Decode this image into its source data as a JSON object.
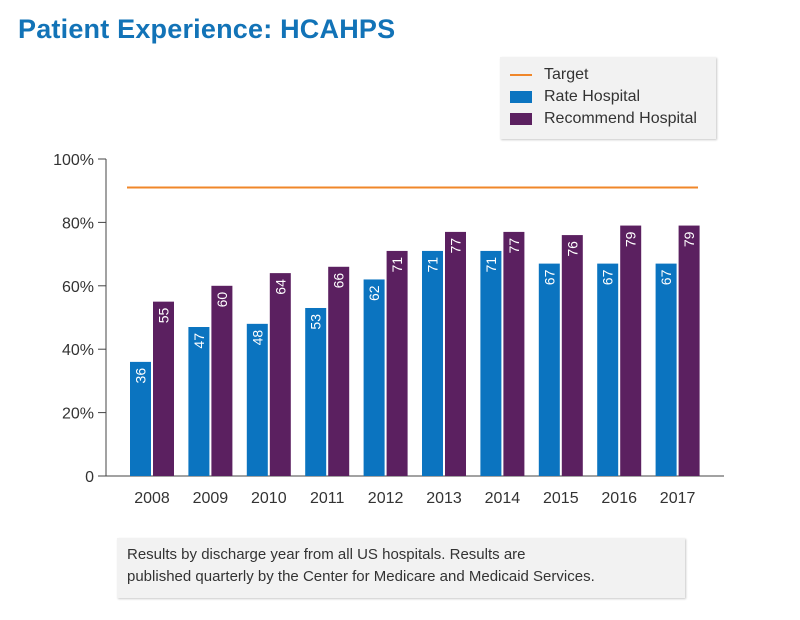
{
  "title": "Patient Experience: HCAHPS",
  "colors": {
    "title": "#1273b7",
    "target": "#f0872a",
    "rate": "#0b74c0",
    "recommend": "#5b2060",
    "axis": "#444444",
    "text": "#333333"
  },
  "legend": {
    "target": "Target",
    "rate": "Rate Hospital",
    "recommend": "Recommend Hospital"
  },
  "note": {
    "line1": "Results by discharge year from all US hospitals. Results are",
    "line2": "published quarterly by the Center for Medicare and Medicaid Services."
  },
  "chart_data": {
    "type": "bar",
    "categories": [
      "2008",
      "2009",
      "2010",
      "2011",
      "2012",
      "2013",
      "2014",
      "2015",
      "2016",
      "2017"
    ],
    "series": [
      {
        "name": "Rate Hospital",
        "values": [
          36,
          47,
          48,
          53,
          62,
          71,
          71,
          67,
          67,
          67
        ]
      },
      {
        "name": "Recommend Hospital",
        "values": [
          55,
          60,
          64,
          66,
          71,
          77,
          77,
          76,
          79,
          79
        ]
      }
    ],
    "target": {
      "name": "Target",
      "value": 91
    },
    "ylim": [
      0,
      100
    ],
    "yticks": [
      0,
      20,
      40,
      60,
      80,
      100
    ],
    "ytick_labels": [
      "0",
      "20%",
      "40%",
      "60%",
      "80%",
      "100%"
    ],
    "grid": false,
    "legend_position": "top-right"
  }
}
